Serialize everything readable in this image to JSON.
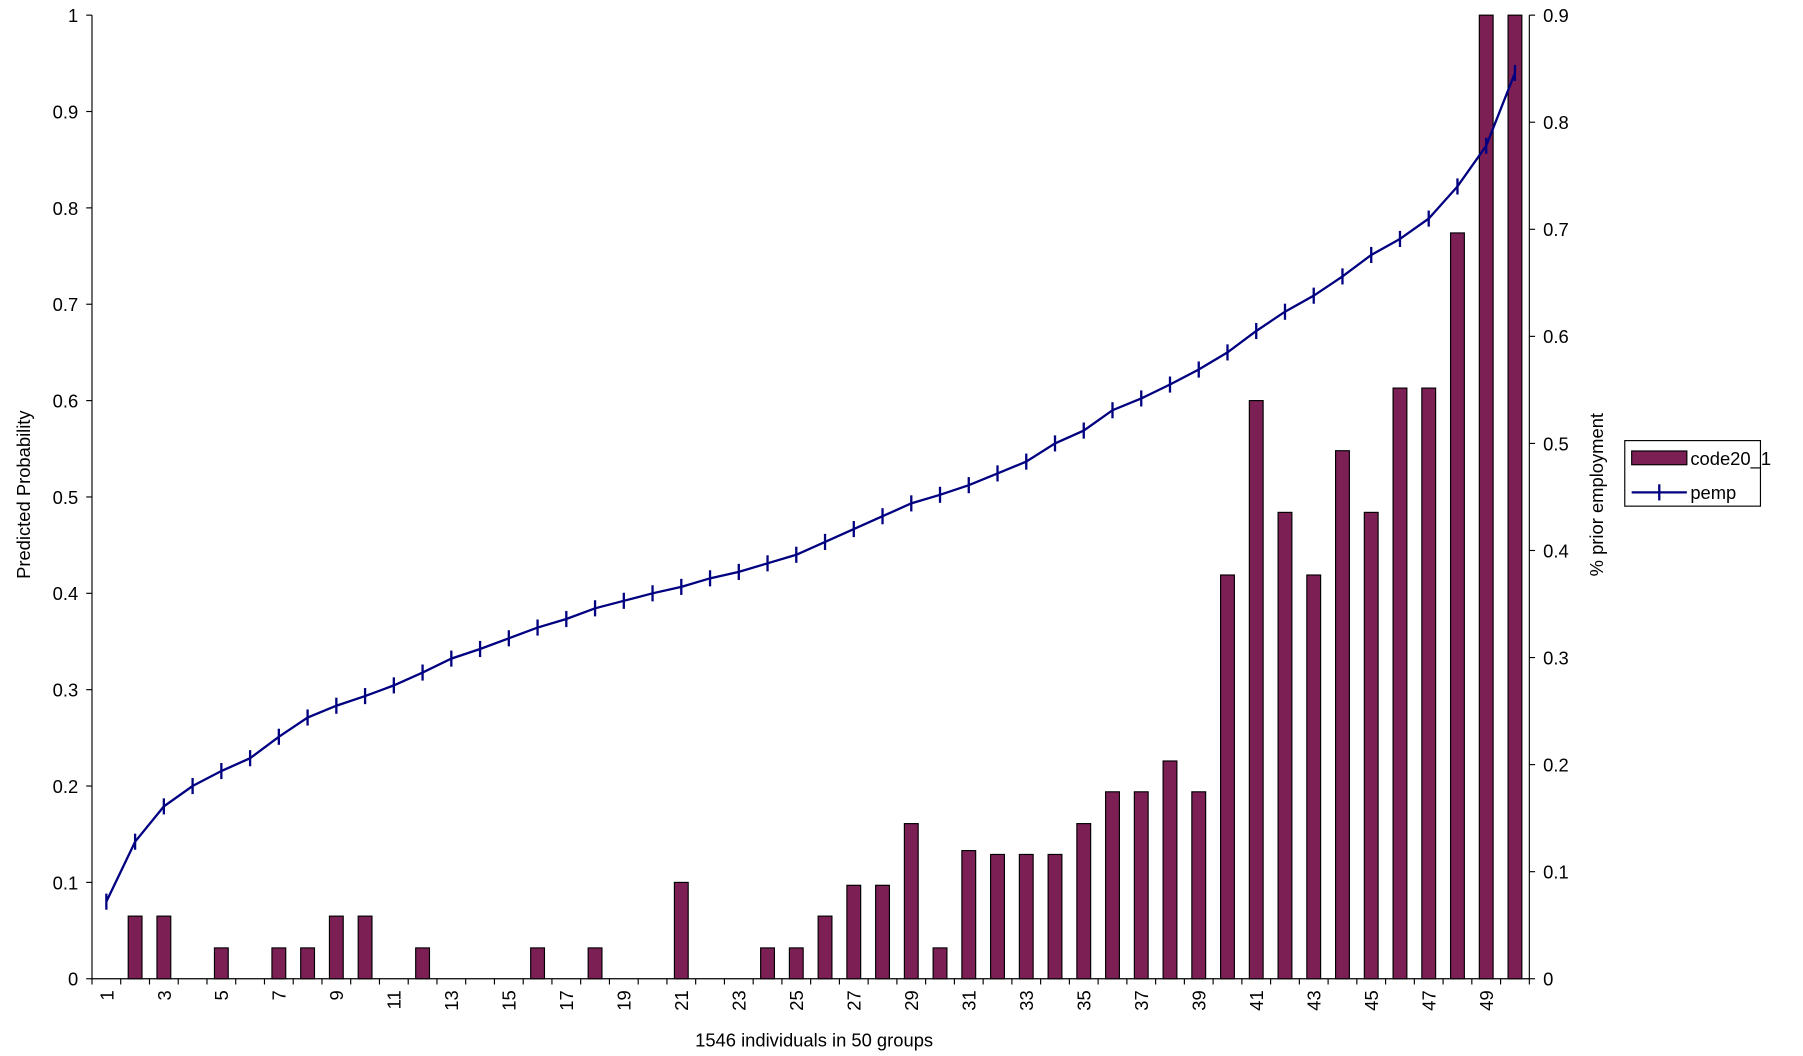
{
  "chart_data": {
    "type": "bar_line",
    "x_label": "1546 individuals in 50 groups",
    "y_label": "Predicted Probability",
    "y2_label": "% prior employment",
    "categories": [
      "1",
      null,
      "3",
      null,
      "5",
      null,
      "7",
      null,
      "9",
      null,
      "11",
      null,
      "13",
      null,
      "15",
      null,
      "17",
      null,
      "19",
      null,
      "21",
      null,
      "23",
      null,
      "25",
      null,
      "27",
      null,
      "29",
      null,
      "31",
      null,
      "33",
      null,
      "35",
      null,
      "37",
      null,
      "39",
      null,
      "41",
      null,
      "43",
      null,
      "45",
      null,
      "47",
      null,
      "49",
      null
    ],
    "series": [
      {
        "name": "code20_1",
        "type": "bar",
        "color": "#7b1f55",
        "values": [
          0,
          0.065,
          0.065,
          0,
          0.032,
          0,
          0.032,
          0.032,
          0.065,
          0.065,
          0,
          0.032,
          0,
          0,
          0,
          0.032,
          0,
          0.032,
          0,
          0,
          0.1,
          0,
          0,
          0.032,
          0.032,
          0.065,
          0.097,
          0.097,
          0.161,
          0.032,
          0.133,
          0.129,
          0.129,
          0.129,
          0.161,
          0.194,
          0.194,
          0.226,
          0.194,
          0.419,
          0.6,
          0.484,
          0.419,
          0.548,
          0.484,
          0.613,
          0.613,
          0.774,
          1,
          1
        ]
      },
      {
        "name": "pemp",
        "type": "line",
        "axis": "y2",
        "color": "#000080",
        "values": [
          0.072,
          0.128,
          0.161,
          0.18,
          0.194,
          0.206,
          0.226,
          0.244,
          0.255,
          0.264,
          0.274,
          0.286,
          0.299,
          0.308,
          0.318,
          0.328,
          0.336,
          0.346,
          0.353,
          0.36,
          0.366,
          0.374,
          0.38,
          0.388,
          0.396,
          0.408,
          0.42,
          0.432,
          0.444,
          0.452,
          0.461,
          0.472,
          0.483,
          0.5,
          0.512,
          0.531,
          0.542,
          0.555,
          0.569,
          0.585,
          0.605,
          0.623,
          0.638,
          0.656,
          0.676,
          0.691,
          0.71,
          0.74,
          0.778,
          0.846
        ]
      }
    ],
    "ylim": [
      0,
      1
    ],
    "yticks": [
      0,
      0.1,
      0.2,
      0.3,
      0.4,
      0.5,
      0.6,
      0.7,
      0.8,
      0.9,
      1
    ],
    "y2lim": [
      0,
      0.9
    ],
    "y2ticks": [
      0,
      0.1,
      0.2,
      0.3,
      0.4,
      0.5,
      0.6,
      0.7,
      0.8,
      0.9
    ],
    "grid": false,
    "legend": "right"
  }
}
